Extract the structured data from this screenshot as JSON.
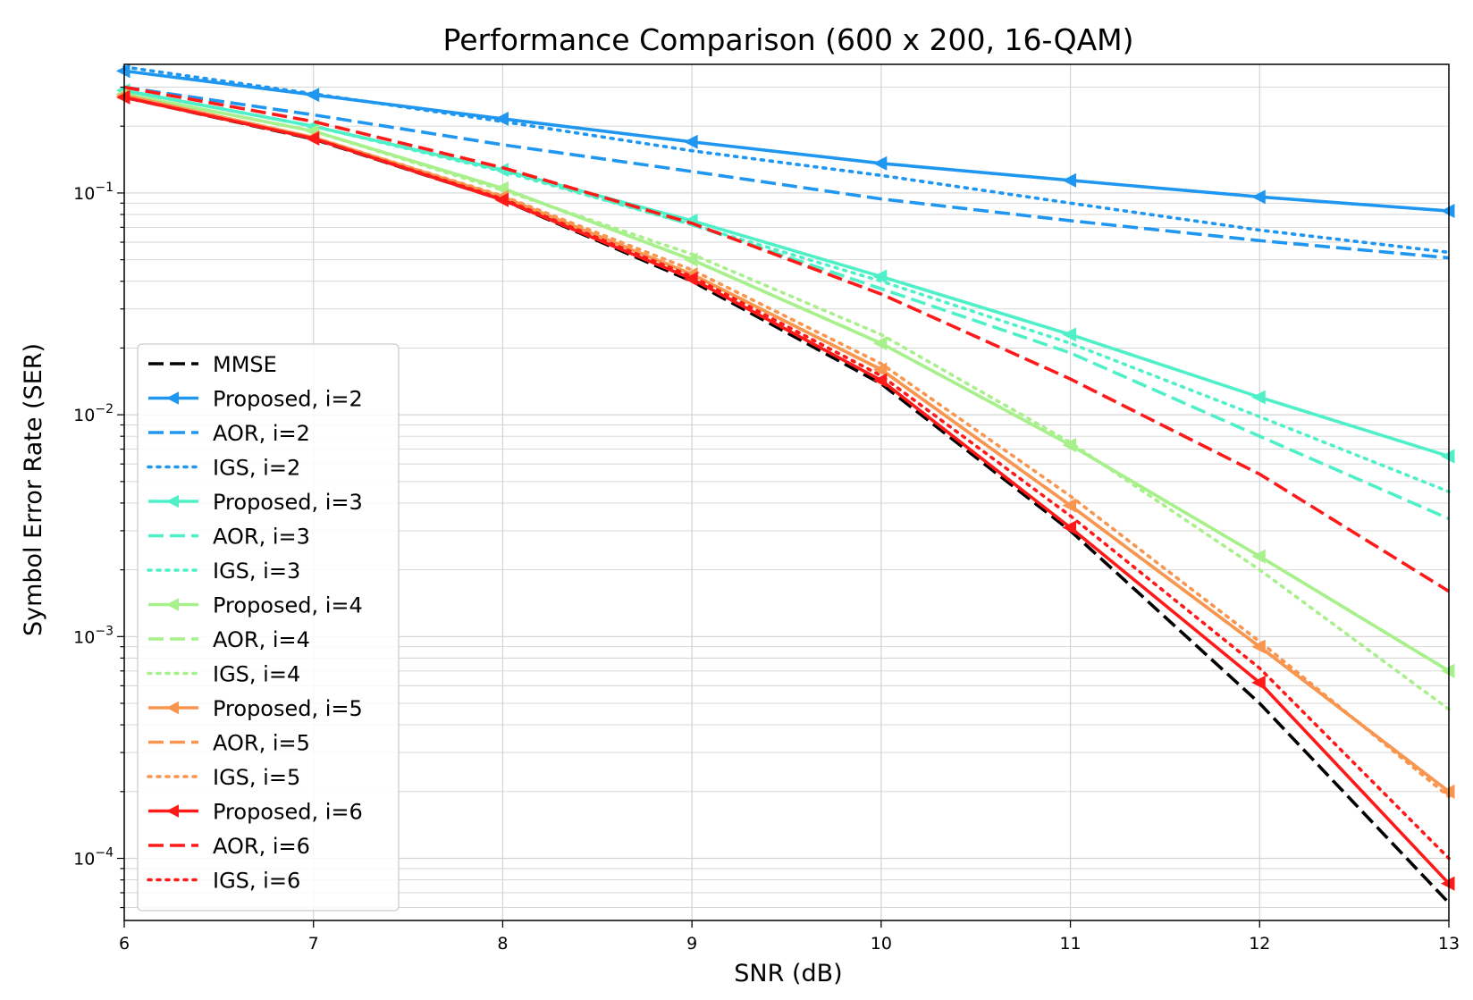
{
  "chart_data": {
    "type": "line",
    "title": "Performance Comparison (600 x 200, 16-QAM)",
    "xlabel": "SNR (dB)",
    "ylabel": "Symbol Error Rate (SER)",
    "yscale": "log",
    "xlim": [
      6,
      13
    ],
    "ylim_log10": [
      -4.28,
      -0.42
    ],
    "x_ticks": [
      6,
      7,
      8,
      9,
      10,
      11,
      12,
      13
    ],
    "y_ticks_exp": [
      -1,
      -2,
      -3,
      -4
    ],
    "y_tick_base": "10",
    "grid": true,
    "legend_position": "lower-left",
    "x": [
      6,
      7,
      8,
      9,
      10,
      11,
      12,
      13
    ],
    "series": [
      {
        "name": "MMSE",
        "color": "#000000",
        "style": "dashed",
        "marker": false,
        "values": [
          0.27,
          0.175,
          0.093,
          0.04,
          0.0138,
          0.003,
          0.0005,
          6.3e-05
        ]
      },
      {
        "name": "Proposed, i=2",
        "color": "#1f96f0",
        "style": "solid",
        "marker": true,
        "values": [
          0.355,
          0.277,
          0.216,
          0.17,
          0.136,
          0.114,
          0.096,
          0.083
        ]
      },
      {
        "name": "AOR, i=2",
        "color": "#1f96f0",
        "style": "dashed",
        "marker": false,
        "values": [
          0.3,
          0.225,
          0.165,
          0.125,
          0.094,
          0.075,
          0.061,
          0.051
        ]
      },
      {
        "name": "IGS, i=2",
        "color": "#1f96f0",
        "style": "dotted",
        "marker": false,
        "values": [
          0.37,
          0.28,
          0.21,
          0.155,
          0.12,
          0.09,
          0.068,
          0.054
        ]
      },
      {
        "name": "Proposed, i=3",
        "color": "#4ff0c8",
        "style": "solid",
        "marker": true,
        "values": [
          0.29,
          0.2,
          0.127,
          0.075,
          0.042,
          0.023,
          0.012,
          0.0065
        ]
      },
      {
        "name": "AOR, i=3",
        "color": "#4ff0c8",
        "style": "dashed",
        "marker": false,
        "values": [
          0.29,
          0.2,
          0.127,
          0.072,
          0.037,
          0.019,
          0.008,
          0.0034
        ]
      },
      {
        "name": "IGS, i=3",
        "color": "#4ff0c8",
        "style": "dotted",
        "marker": false,
        "values": [
          0.29,
          0.2,
          0.125,
          0.072,
          0.04,
          0.021,
          0.0098,
          0.0045
        ]
      },
      {
        "name": "Proposed, i=4",
        "color": "#a8f08c",
        "style": "solid",
        "marker": true,
        "values": [
          0.28,
          0.19,
          0.105,
          0.05,
          0.021,
          0.0073,
          0.0023,
          0.0007
        ]
      },
      {
        "name": "AOR, i=4",
        "color": "#a8f08c",
        "style": "dashed",
        "marker": false,
        "values": [
          0.28,
          0.19,
          0.105,
          0.05,
          0.021,
          0.0073,
          0.0023,
          0.0007
        ]
      },
      {
        "name": "IGS, i=4",
        "color": "#a8f08c",
        "style": "dotted",
        "marker": false,
        "values": [
          0.28,
          0.19,
          0.103,
          0.053,
          0.023,
          0.0075,
          0.002,
          0.00047
        ]
      },
      {
        "name": "Proposed, i=5",
        "color": "#f89650",
        "style": "solid",
        "marker": true,
        "values": [
          0.275,
          0.178,
          0.096,
          0.043,
          0.016,
          0.0039,
          0.0009,
          0.0002
        ]
      },
      {
        "name": "AOR, i=5",
        "color": "#f89650",
        "style": "dashed",
        "marker": false,
        "values": [
          0.275,
          0.178,
          0.096,
          0.043,
          0.016,
          0.0039,
          0.0009,
          0.0002
        ]
      },
      {
        "name": "IGS, i=5",
        "color": "#f89650",
        "style": "dotted",
        "marker": false,
        "values": [
          0.275,
          0.178,
          0.097,
          0.045,
          0.017,
          0.0043,
          0.00095,
          0.00019
        ]
      },
      {
        "name": "Proposed, i=6",
        "color": "#ff1a1a",
        "style": "solid",
        "marker": true,
        "values": [
          0.27,
          0.176,
          0.093,
          0.041,
          0.0143,
          0.0031,
          0.00062,
          7.7e-05
        ]
      },
      {
        "name": "AOR, i=6",
        "color": "#ff1a1a",
        "style": "dashed",
        "marker": false,
        "values": [
          0.3,
          0.21,
          0.13,
          0.073,
          0.035,
          0.0145,
          0.0054,
          0.0016
        ]
      },
      {
        "name": "IGS, i=6",
        "color": "#ff1a1a",
        "style": "dotted",
        "marker": false,
        "values": [
          0.27,
          0.176,
          0.094,
          0.042,
          0.015,
          0.0035,
          0.00072,
          0.0001
        ]
      }
    ]
  }
}
